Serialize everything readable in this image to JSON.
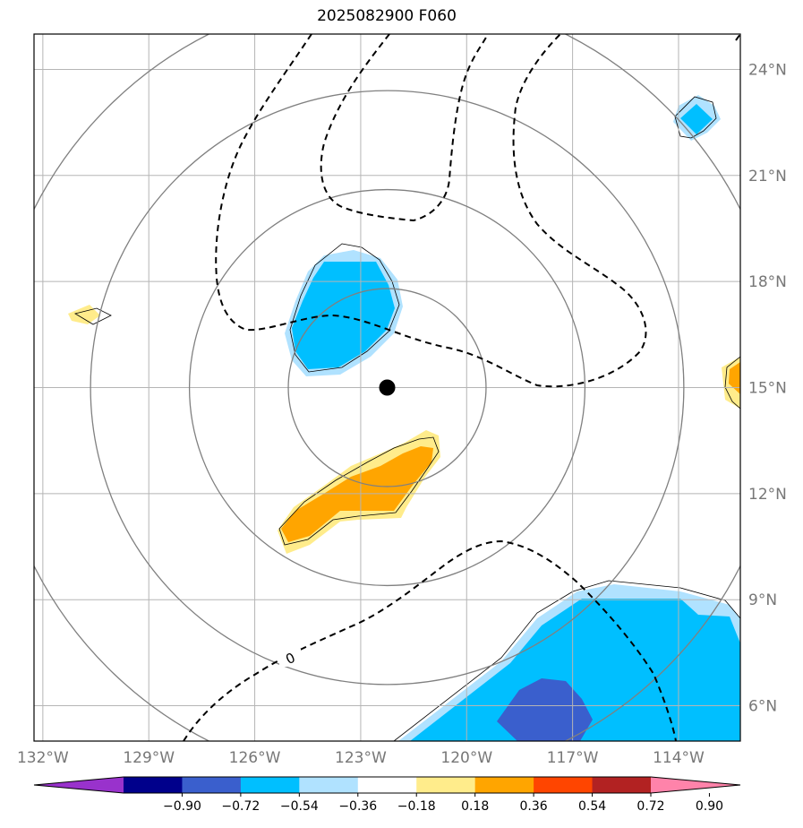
{
  "title": "2025082900 F060",
  "map": {
    "lon_range": [
      -132.25,
      -112.25
    ],
    "lat_range": [
      5,
      25
    ],
    "lon_ticks": [
      "132°W",
      "129°W",
      "126°W",
      "123°W",
      "120°W",
      "117°W",
      "114°W"
    ],
    "lon_tick_values": [
      -132,
      -129,
      -126,
      -123,
      -120,
      -117,
      -114
    ],
    "lat_ticks": [
      "24°N",
      "21°N",
      "18°N",
      "15°N",
      "12°N",
      "9°N",
      "6°N"
    ],
    "lat_tick_values": [
      24,
      21,
      18,
      15,
      12,
      9,
      6
    ],
    "storm_center": {
      "lon": -122.25,
      "lat": 15.0
    },
    "range_rings_deg": [
      2.8,
      5.6,
      8.4,
      11.2
    ],
    "contour_label": "0"
  },
  "colorbar": {
    "tick_labels": [
      "−0.90",
      "−0.72",
      "−0.54",
      "−0.36",
      "−0.18",
      "0.18",
      "0.36",
      "0.54",
      "0.72",
      "0.90"
    ],
    "tick_values": [
      -0.9,
      -0.72,
      -0.54,
      -0.36,
      -0.18,
      0.18,
      0.36,
      0.54,
      0.72,
      0.9
    ],
    "colors": [
      "#9932cc",
      "#00008b",
      "#3a5fcd",
      "#00bfff",
      "#b0e2ff",
      "#ffffff",
      "#ffec8b",
      "#ffa500",
      "#ff4500",
      "#b22222",
      "#ff83aa"
    ]
  },
  "colors": {
    "grid": "#b5b5b5",
    "rings": "#808080",
    "axis_text": "#777777"
  }
}
